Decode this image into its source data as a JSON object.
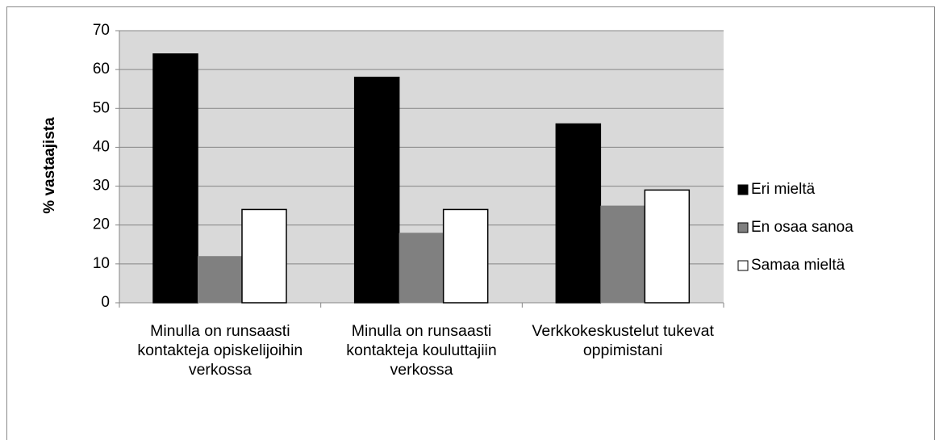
{
  "chart_data": {
    "type": "bar",
    "y_label": "% vastaajista",
    "categories": [
      "Minulla on runsaasti kontakteja opiskelijoihin verkossa",
      "Minulla on runsaasti kontakteja kouluttajiin verkossa",
      "Verkkokeskustelut tukevat oppimistani"
    ],
    "series": [
      {
        "name": "Eri mieltä",
        "color": "#000000",
        "values": [
          64,
          58,
          46
        ]
      },
      {
        "name": "En osaa sanoa",
        "color": "#808080",
        "values": [
          12,
          18,
          25
        ]
      },
      {
        "name": "Samaa mieltä",
        "color": "#ffffff",
        "values": [
          24,
          24,
          29
        ]
      }
    ],
    "ylim": [
      0,
      70
    ],
    "yticks": [
      0,
      10,
      20,
      30,
      40,
      50,
      60,
      70
    ],
    "grid": true,
    "legend": "right"
  }
}
